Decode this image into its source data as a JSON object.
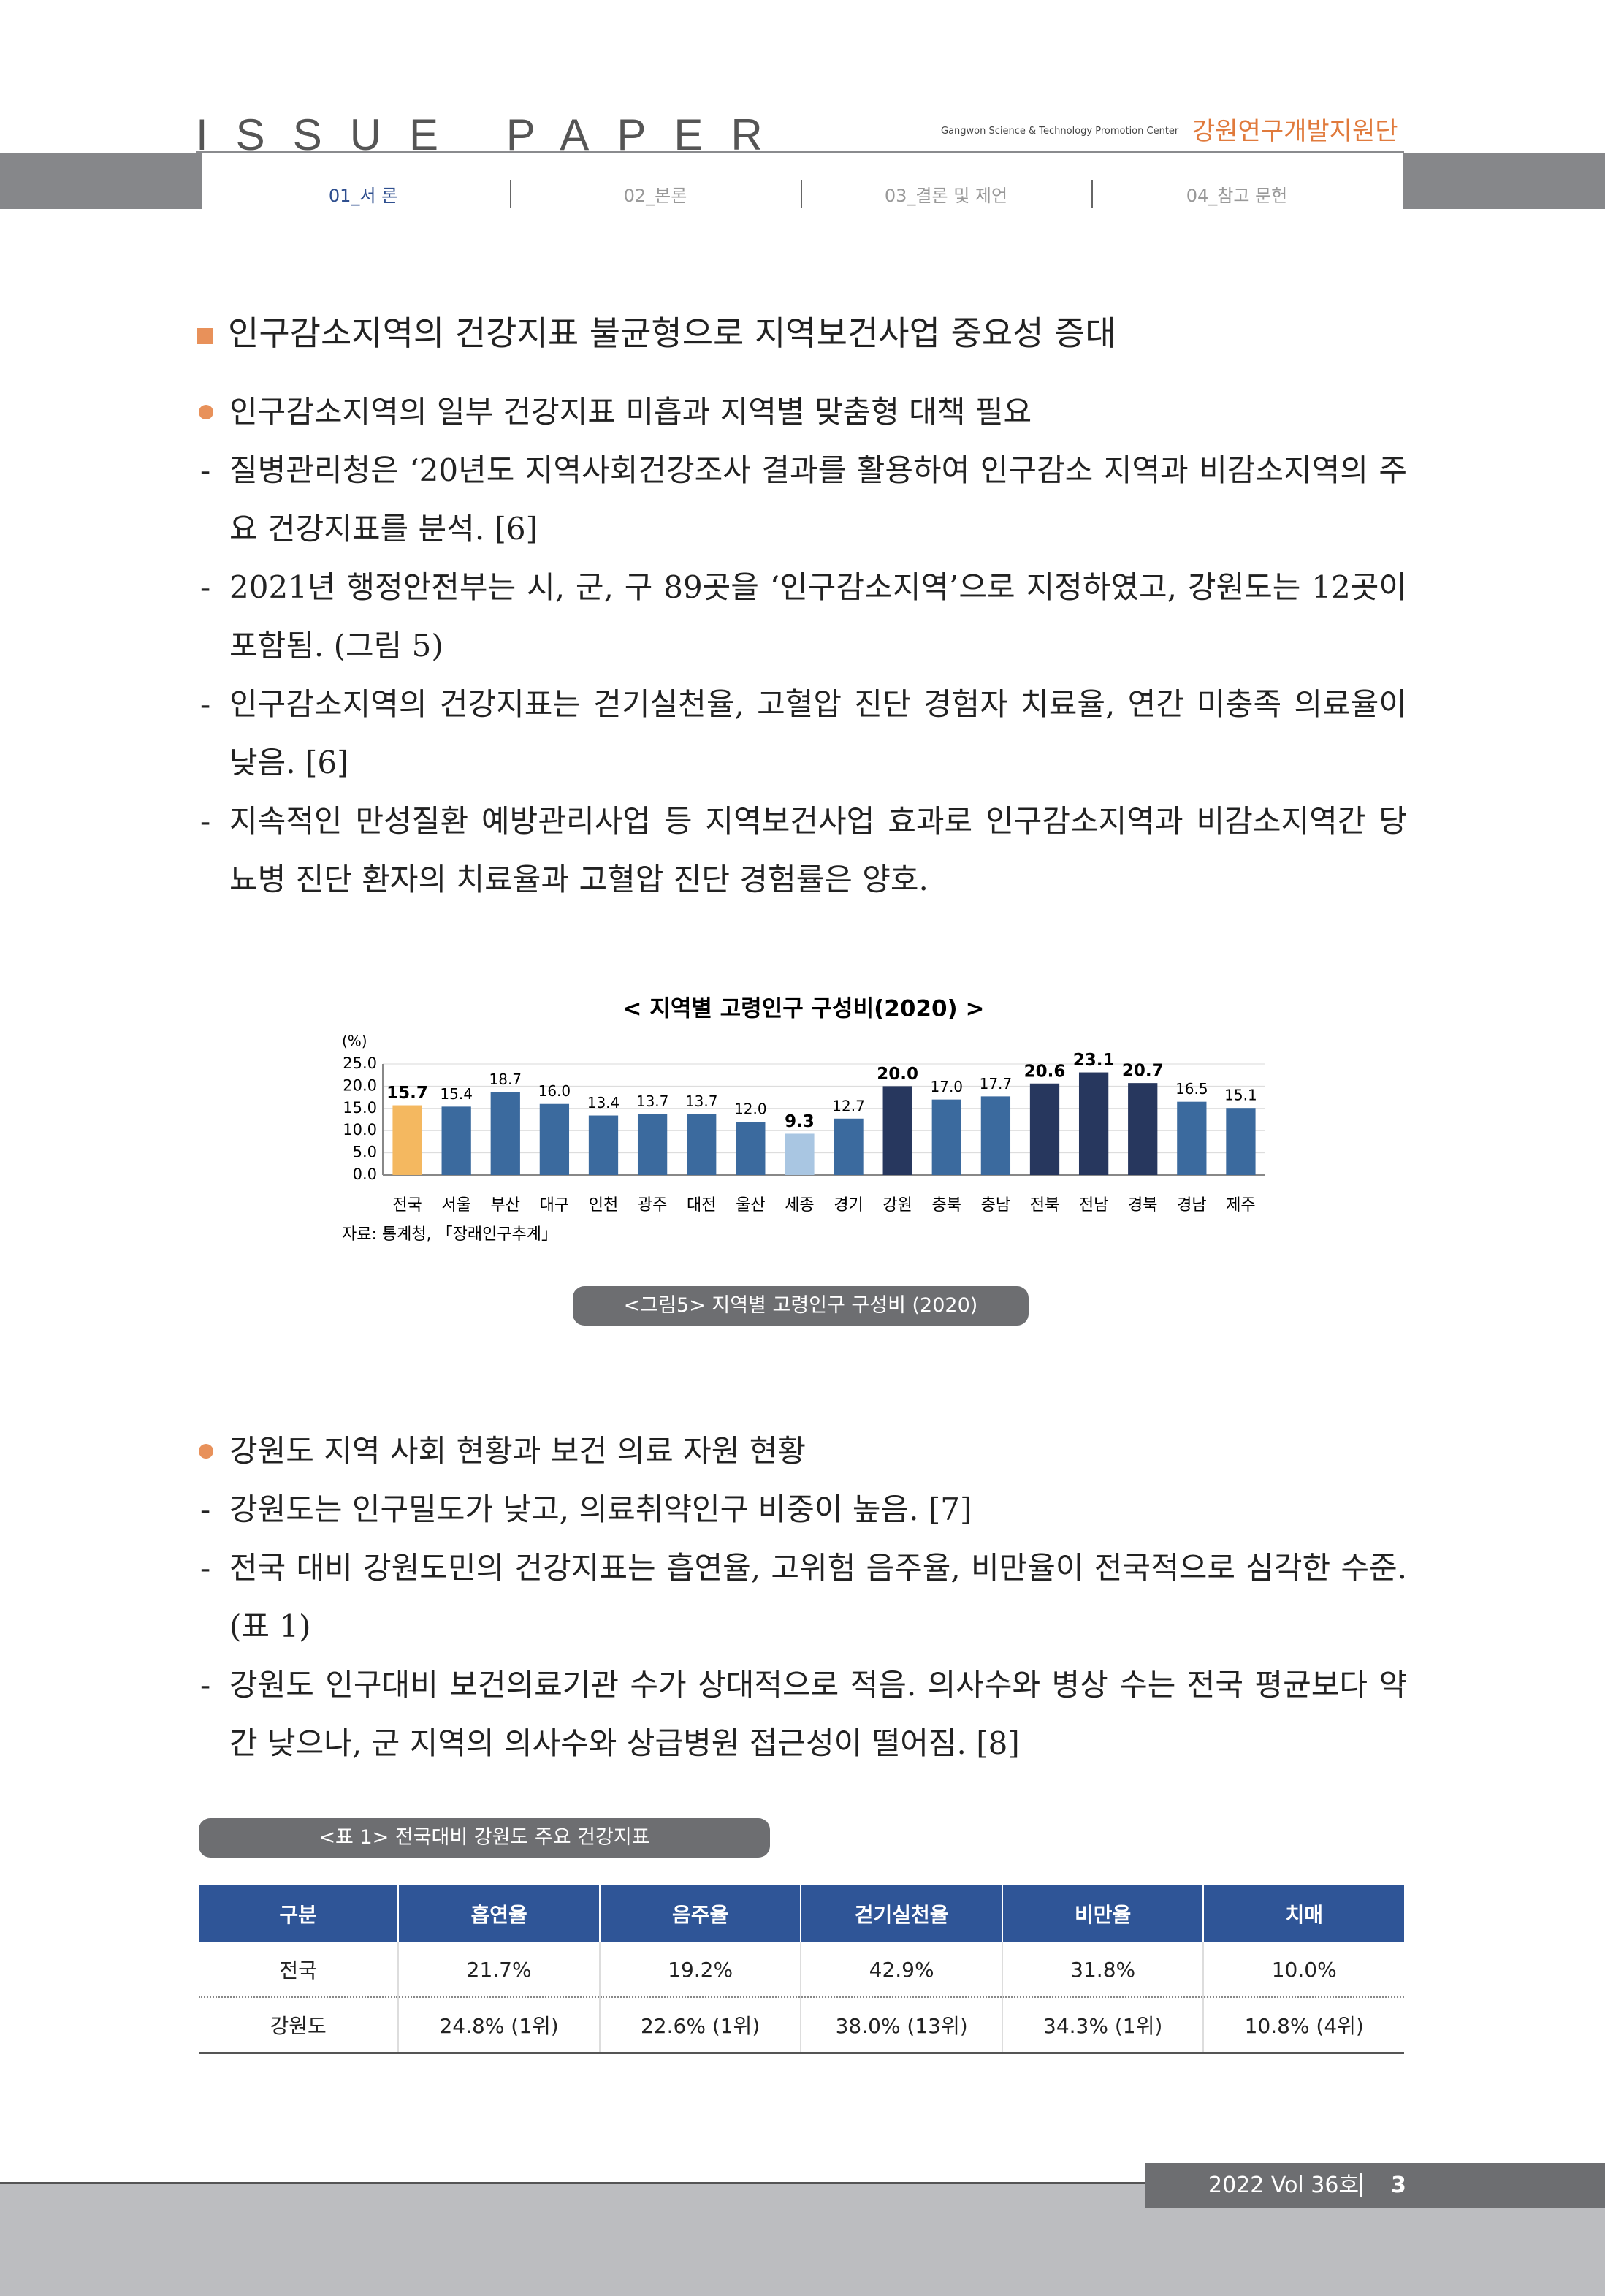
{
  "header": {
    "title": "ISSUE PAPER",
    "org_en": "Gangwon Science & Technology Promotion Center",
    "org": "강원연구개발지원단"
  },
  "nav": [
    "01_서 론",
    "02_본론",
    "03_결론 및 제언",
    "04_참고 문헌"
  ],
  "section_title": "인구감소지역의 건강지표 불균형으로 지역보건사업 중요성 증대",
  "blocks": [
    {
      "bullet": "인구감소지역의 일부 건강지표 미흡과 지역별 맞춤형 대책 필요",
      "items": [
        "질병관리청은 ‘20년도 지역사회건강조사 결과를 활용하여 인구감소 지역과 비감소지역의 주요 건강지표를 분석. [6]",
        "2021년 행정안전부는 시, 군, 구 89곳을 ‘인구감소지역’으로 지정하였고, 강원도는 12곳이 포함됨. (그림 5)",
        "인구감소지역의 건강지표는 걷기실천율, 고혈압 진단 경험자 치료율, 연간 미충족 의료율이 낮음. [6]",
        "지속적인 만성질환 예방관리사업 등 지역보건사업 효과로 인구감소지역과 비감소지역간 당뇨병 진단 환자의 치료율과 고혈압 진단 경험률은 양호."
      ]
    },
    {
      "bullet": "강원도 지역 사회 현황과 보건 의료 자원 현황",
      "items": [
        "강원도는 인구밀도가 낮고, 의료취약인구 비중이 높음. [7]",
        "전국 대비 강원도민의 건강지표는 흡연율, 고위험 음주율, 비만율이 전국적으로 심각한 수준. (표 1)",
        "강원도 인구대비 보건의료기관 수가 상대적으로 적음. 의사수와 병상 수는 전국 평균보다 약간 낮으나, 군 지역의 의사수와 상급병원 접근성이 떨어짐. [8]"
      ]
    }
  ],
  "figure": {
    "chart_data": {
      "type": "bar",
      "title": "< 지역별 고령인구 구성비(2020) >",
      "unit": "(%)",
      "categories": [
        "전국",
        "서울",
        "부산",
        "대구",
        "인천",
        "광주",
        "대전",
        "울산",
        "세종",
        "경기",
        "강원",
        "충북",
        "충남",
        "전북",
        "전남",
        "경북",
        "경남",
        "제주"
      ],
      "values": [
        15.7,
        15.4,
        18.7,
        16.0,
        13.4,
        13.7,
        13.7,
        12.0,
        9.3,
        12.7,
        20.0,
        17.0,
        17.7,
        20.6,
        23.1,
        20.7,
        16.5,
        15.1
      ],
      "value_labels": [
        "15.7",
        "15.4",
        "18.7",
        "16.0",
        "13.4",
        "13.7",
        "13.7",
        "12.0",
        "9.3",
        "12.7",
        "20.0",
        "17.0",
        "17.7",
        "20.6",
        "23.1",
        "20.7",
        "16.5",
        "15.1"
      ],
      "colors": [
        "#f4b860",
        "#3b6a9e",
        "#3b6a9e",
        "#3b6a9e",
        "#3b6a9e",
        "#3b6a9e",
        "#3b6a9e",
        "#3b6a9e",
        "#a9c6e2",
        "#3b6a9e",
        "#27375e",
        "#3b6a9e",
        "#3b6a9e",
        "#27375e",
        "#27375e",
        "#27375e",
        "#3b6a9e",
        "#3b6a9e"
      ],
      "ylim": [
        0,
        25
      ],
      "yticks": [
        {
          "value": 0,
          "label": "0.0"
        },
        {
          "value": 5,
          "label": "5.0"
        },
        {
          "value": 10,
          "label": "10.0"
        },
        {
          "value": 15,
          "label": "15.0"
        },
        {
          "value": 20,
          "label": "20.0"
        },
        {
          "value": 25,
          "label": "25.0"
        }
      ],
      "grid": true,
      "source": "자료: 통계청, 「장래인구추계」"
    },
    "caption": "<그림5> 지역별 고령인구 구성비 (2020)"
  },
  "table": {
    "caption": "<표 1> 전국대비 강원도 주요 건강지표",
    "header": [
      "구분",
      "흡연율",
      "음주율",
      "걷기실천율",
      "비만율",
      "치매"
    ],
    "rows": [
      [
        "전국",
        "21.7%",
        "19.2%",
        "42.9%",
        "31.8%",
        "10.0%"
      ],
      [
        "강원도",
        "24.8% (1위)",
        "22.6% (1위)",
        "38.0% (13위)",
        "34.3% (1위)",
        "10.8% (4위)"
      ]
    ]
  },
  "footer": {
    "issue": "2022 Vol 36호",
    "page": "3"
  }
}
